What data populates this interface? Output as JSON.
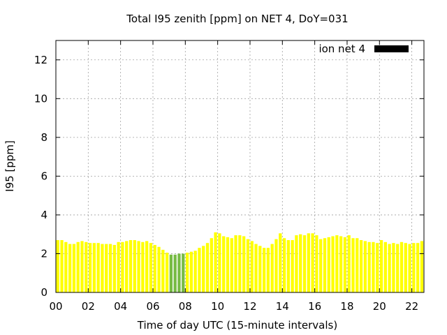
{
  "chart_data": {
    "type": "bar",
    "title": "Total I95 zenith [ppm] on NET 4, DoY=031",
    "xlabel": "Time of day UTC (15-minute intervals)",
    "ylabel": "I95 [ppm]",
    "xlim": [
      0,
      22.75
    ],
    "ylim": [
      0,
      13
    ],
    "yticks": [
      0,
      2,
      4,
      6,
      8,
      10,
      12
    ],
    "xticks": [
      "00",
      "02",
      "04",
      "06",
      "08",
      "10",
      "12",
      "14",
      "16",
      "18",
      "20",
      "22"
    ],
    "grid": true,
    "legend_position": "top-right",
    "series": [
      {
        "name": "ion net 4",
        "color": "#000000",
        "x_hours_start": 0,
        "x_step_hours": 0.25,
        "bar_colors": {
          "default": "#ffff00",
          "highlight": "#77bb44"
        },
        "highlight_range_hours": [
          7.0,
          8.0
        ],
        "values": [
          2.7,
          2.7,
          2.6,
          2.5,
          2.5,
          2.6,
          2.65,
          2.6,
          2.55,
          2.55,
          2.55,
          2.5,
          2.5,
          2.5,
          2.45,
          2.6,
          2.6,
          2.65,
          2.7,
          2.7,
          2.65,
          2.6,
          2.65,
          2.55,
          2.45,
          2.35,
          2.2,
          2.05,
          1.95,
          1.95,
          2.0,
          2.0,
          2.05,
          2.1,
          2.15,
          2.3,
          2.4,
          2.55,
          2.8,
          3.1,
          3.05,
          2.9,
          2.85,
          2.8,
          2.95,
          2.95,
          2.9,
          2.75,
          2.65,
          2.5,
          2.4,
          2.3,
          2.3,
          2.5,
          2.75,
          3.05,
          2.8,
          2.7,
          2.7,
          2.95,
          3.0,
          2.95,
          3.05,
          3.05,
          2.95,
          2.75,
          2.8,
          2.85,
          2.9,
          2.95,
          2.9,
          2.85,
          2.95,
          2.8,
          2.8,
          2.7,
          2.65,
          2.6,
          2.6,
          2.55,
          2.7,
          2.6,
          2.5,
          2.55,
          2.5,
          2.6,
          2.55,
          2.5,
          2.55,
          2.55,
          2.65
        ]
      }
    ]
  }
}
